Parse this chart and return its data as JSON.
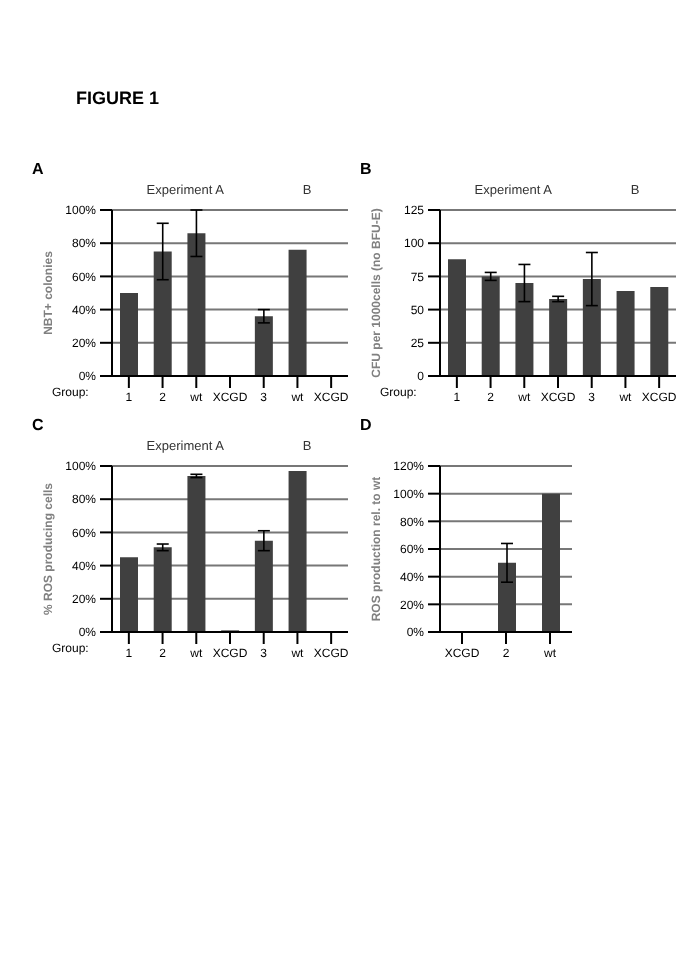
{
  "chart_data": [
    {
      "type": "bar",
      "title": "FIGURE 1",
      "subtitle": "A",
      "annotations": [
        "Experiment A",
        "B"
      ],
      "xlabel": "Group:",
      "ylabel": "NBT+ colonies",
      "categories": [
        "1",
        "2",
        "wt",
        "XCGD",
        "3",
        "wt",
        "XCGD"
      ],
      "values": [
        50,
        75,
        86,
        0,
        36,
        76,
        0
      ],
      "errors": [
        null,
        17,
        14,
        null,
        4,
        null,
        null
      ],
      "color": "#404040",
      "ylim": [
        0,
        100
      ],
      "yticks": [
        {
          "value": 0,
          "label": "0%"
        },
        {
          "value": 20,
          "label": "20%"
        },
        {
          "value": 40,
          "label": "40%"
        },
        {
          "value": 60,
          "label": "60%"
        },
        {
          "value": 80,
          "label": "80%"
        },
        {
          "value": 100,
          "label": "100%"
        }
      ],
      "grid": "y"
    },
    {
      "type": "bar",
      "subtitle": "B",
      "annotations": [
        "Experiment A",
        "B"
      ],
      "xlabel": "Group:",
      "ylabel": "CFU per 1000cells (no BFU-E)",
      "categories": [
        "1",
        "2",
        "wt",
        "XCGD",
        "3",
        "wt",
        "XCGD"
      ],
      "values": [
        88,
        75,
        70,
        58,
        73,
        64,
        67
      ],
      "errors": [
        null,
        3,
        14,
        2,
        20,
        null,
        null
      ],
      "color": "#404040",
      "ylim": [
        0,
        125
      ],
      "yticks": [
        0,
        25,
        50,
        75,
        100,
        125
      ],
      "grid": "y"
    },
    {
      "type": "bar",
      "subtitle": "C",
      "annotations": [
        "Experiment A",
        "B"
      ],
      "xlabel": "Group:",
      "ylabel": "% ROS producing cells",
      "categories": [
        "1",
        "2",
        "wt",
        "XCGD",
        "3",
        "wt",
        "XCGD"
      ],
      "values": [
        45,
        51,
        94,
        1,
        55,
        97,
        0
      ],
      "errors": [
        null,
        2,
        1,
        null,
        6,
        null,
        null
      ],
      "color": "#404040",
      "ylim": [
        0,
        100
      ],
      "yticks": [
        {
          "value": 0,
          "label": "0%"
        },
        {
          "value": 20,
          "label": "20%"
        },
        {
          "value": 40,
          "label": "40%"
        },
        {
          "value": 60,
          "label": "60%"
        },
        {
          "value": 80,
          "label": "80%"
        },
        {
          "value": 100,
          "label": "100%"
        }
      ],
      "grid": "y"
    },
    {
      "type": "bar",
      "subtitle": "D",
      "ylabel": "ROS production rel. to wt",
      "categories": [
        "XCGD",
        "2",
        "wt"
      ],
      "values": [
        0,
        50,
        100
      ],
      "errors": [
        null,
        14,
        null
      ],
      "color": "#404040",
      "ylim": [
        0,
        120
      ],
      "yticks": [
        {
          "value": 0,
          "label": "0%"
        },
        {
          "value": 20,
          "label": "20%"
        },
        {
          "value": 40,
          "label": "40%"
        },
        {
          "value": 60,
          "label": "60%"
        },
        {
          "value": 80,
          "label": "80%"
        },
        {
          "value": 100,
          "label": "100%"
        },
        {
          "value": 120,
          "label": "120%"
        }
      ],
      "grid": "y"
    }
  ]
}
